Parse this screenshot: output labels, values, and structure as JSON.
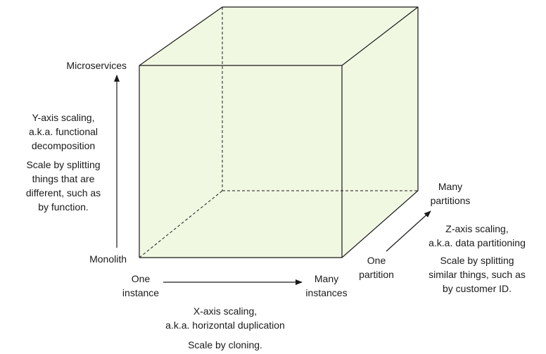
{
  "colors": {
    "cube_fill": "#f1f8e2",
    "cube_stroke": "#1a1a1a",
    "text": "#1a1a1a"
  },
  "axes": {
    "y": {
      "top_label": "Microservices",
      "bottom_label": "Monolith",
      "title_lines": [
        "Y-axis scaling,",
        "a.k.a. functional",
        "decomposition"
      ],
      "desc_lines": [
        "Scale by splitting",
        "things that are",
        "different, such as",
        "by function."
      ]
    },
    "x": {
      "start_label_lines": [
        "One",
        "instance"
      ],
      "end_label_lines": [
        "Many",
        "instances"
      ],
      "title_lines": [
        "X-axis scaling,",
        "a.k.a. horizontal duplication"
      ],
      "desc_lines": [
        "Scale by cloning."
      ]
    },
    "z": {
      "start_label_lines": [
        "One",
        "partition"
      ],
      "end_label_lines": [
        "Many",
        "partitions"
      ],
      "title_lines": [
        "Z-axis scaling,",
        "a.k.a. data partitioning"
      ],
      "desc_lines": [
        "Scale by splitting",
        "similar things, such as",
        "by customer ID."
      ]
    }
  }
}
